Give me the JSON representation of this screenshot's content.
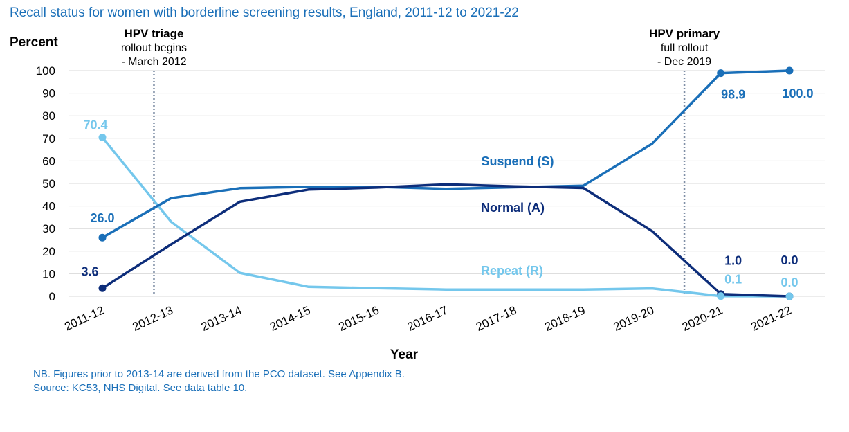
{
  "title": "Recall status for women with borderline screening results, England,  2011-12 to 2021-22",
  "notes": [
    "NB. Figures prior to 2013-14 are derived from the PCO dataset. See Appendix B.",
    "Source: KC53, NHS Digital. See data table 10."
  ],
  "colors": {
    "suspend": "#1a6fb8",
    "normal": "#0d2d7a",
    "repeat": "#74c7ec",
    "grid": "#d9d9d9",
    "event_line": "#7f8fa6"
  },
  "chart_data": {
    "type": "line",
    "title": "Recall status for women with borderline screening results, England,  2011-12 to 2021-22",
    "xlabel": "Year",
    "ylabel": "Percent",
    "ylim": [
      0,
      100
    ],
    "yticks": [
      0,
      10,
      20,
      30,
      40,
      50,
      60,
      70,
      80,
      90,
      100
    ],
    "grid": true,
    "categories": [
      "2011-12",
      "2012-13",
      "2013-14",
      "2014-15",
      "2015-16",
      "2016-17",
      "2017-18",
      "2018-19",
      "2019-20",
      "2020-21",
      "2021-22"
    ],
    "series": [
      {
        "name": "Suspend (S)",
        "key": "suspend",
        "values": [
          26.0,
          43.5,
          47.9,
          48.5,
          48.5,
          47.6,
          48.3,
          49.0,
          67.6,
          98.9,
          100.0
        ],
        "labels": [
          {
            "index": 0,
            "text": "26.0"
          },
          {
            "index": 9,
            "text": "98.9"
          },
          {
            "index": 10,
            "text": "100.0"
          }
        ]
      },
      {
        "name": "Normal (A)",
        "key": "normal",
        "values": [
          3.6,
          23.0,
          41.9,
          47.3,
          48.2,
          49.6,
          48.7,
          48.0,
          28.9,
          1.0,
          0.0
        ],
        "labels": [
          {
            "index": 0,
            "text": "3.6"
          },
          {
            "index": 9,
            "text": "1.0"
          },
          {
            "index": 10,
            "text": "0.0"
          }
        ]
      },
      {
        "name": "Repeat (R)",
        "key": "repeat",
        "values": [
          70.4,
          33.0,
          10.4,
          4.2,
          3.6,
          3.0,
          3.0,
          3.0,
          3.5,
          0.1,
          0.0
        ],
        "labels": [
          {
            "index": 0,
            "text": "70.4"
          },
          {
            "index": 9,
            "text": "0.1"
          },
          {
            "index": 10,
            "text": "0.0"
          }
        ]
      }
    ],
    "events": [
      {
        "x": 0.75,
        "lines": [
          "HPV triage",
          "rollout begins",
          "- March 2012"
        ]
      },
      {
        "x": 8.47,
        "lines": [
          "HPV primary",
          "full rollout",
          "- Dec 2019"
        ]
      }
    ]
  }
}
